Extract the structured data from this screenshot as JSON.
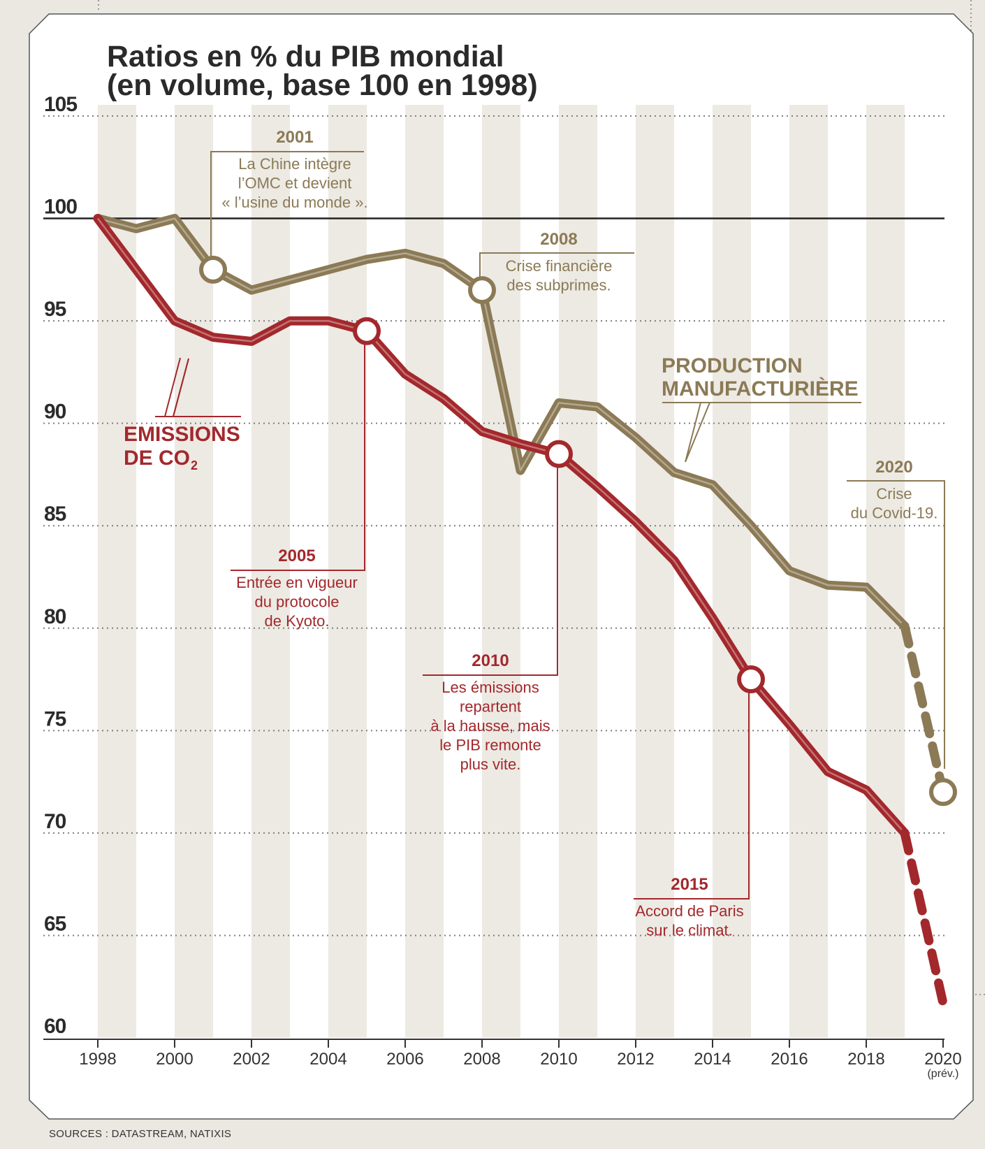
{
  "title": "Ratios en % du PIB mondial",
  "subtitle": "(en volume, base 100 en 1998)",
  "source": "SOURCES : DATASTREAM, NATIXIS",
  "colors": {
    "production": "#8b7a55",
    "emissions": "#a3282c",
    "baseline": "#222222",
    "band": "#edeae4",
    "panel": "#ffffff"
  },
  "x_sub_label": "(prév.)",
  "series_labels": {
    "emissions": [
      "EMISSIONS",
      "DE CO",
      "2"
    ],
    "production": [
      "PRODUCTION",
      "MANUFACTURIÈRE"
    ]
  },
  "annotations": [
    {
      "key": "a2001",
      "year": "2001",
      "lines": [
        "La Chine intègre",
        "l’OMC et devient",
        "« l’usine du monde »."
      ],
      "series": "production"
    },
    {
      "key": "a2008",
      "year": "2008",
      "lines": [
        "Crise financière",
        "des subprimes."
      ],
      "series": "production"
    },
    {
      "key": "a2005",
      "year": "2005",
      "lines": [
        "Entrée en vigueur",
        "du protocole",
        "de Kyoto."
      ],
      "series": "emissions"
    },
    {
      "key": "a2010",
      "year": "2010",
      "lines": [
        "Les émissions",
        "repartent",
        "à la hausse, mais",
        "le PIB remonte",
        "plus vite."
      ],
      "series": "emissions"
    },
    {
      "key": "a2015",
      "year": "2015",
      "lines": [
        "Accord de Paris",
        "sur le climat."
      ],
      "series": "emissions"
    },
    {
      "key": "a2020",
      "year": "2020",
      "lines": [
        "Crise",
        "du Covid-19."
      ],
      "series": "production"
    }
  ],
  "chart_data": {
    "type": "line",
    "title": "Ratios en % du PIB mondial",
    "subtitle": "(en volume, base 100 en 1998)",
    "xlabel": "",
    "ylabel": "",
    "xlim": [
      1998,
      2020
    ],
    "ylim": [
      60,
      105
    ],
    "x_ticks": [
      "1998",
      "2000",
      "2002",
      "2004",
      "2006",
      "2008",
      "2010",
      "2012",
      "2014",
      "2016",
      "2018",
      "2020"
    ],
    "y_ticks": [
      "60",
      "65",
      "70",
      "75",
      "80",
      "85",
      "90",
      "95",
      "100",
      "105"
    ],
    "grid": "horizontal dotted",
    "reference_line": 100,
    "series": [
      {
        "name": "PRODUCTION MANUFACTURIÈRE",
        "x": [
          1998,
          1999,
          2000,
          2001,
          2002,
          2003,
          2004,
          2005,
          2006,
          2007,
          2008,
          2009,
          2010,
          2011,
          2012,
          2013,
          2014,
          2015,
          2016,
          2017,
          2018,
          2019
        ],
        "y": [
          100,
          99.5,
          100,
          97.5,
          96.5,
          97,
          97.5,
          98,
          98.3,
          97.8,
          96.5,
          87.7,
          91,
          90.8,
          89.3,
          87.6,
          87,
          85,
          82.8,
          82.1,
          82,
          80.1
        ],
        "forecast": {
          "x": [
            2019,
            2020
          ],
          "y": [
            80.1,
            72
          ]
        }
      },
      {
        "name": "EMISSIONS DE CO2",
        "x": [
          1998,
          1999,
          2000,
          2001,
          2002,
          2003,
          2004,
          2005,
          2006,
          2007,
          2008,
          2009,
          2010,
          2011,
          2012,
          2013,
          2014,
          2015,
          2016,
          2017,
          2018,
          2019
        ],
        "y": [
          100,
          97.5,
          95,
          94.2,
          94,
          95,
          95,
          94.5,
          92.4,
          91.2,
          89.6,
          89,
          88.5,
          86.9,
          85.2,
          83.3,
          80.5,
          77.5,
          75.3,
          73,
          72.1,
          70
        ],
        "forecast": {
          "x": [
            2019,
            2020
          ],
          "y": [
            70,
            61.7
          ]
        }
      }
    ],
    "markers": [
      {
        "series": "PRODUCTION MANUFACTURIÈRE",
        "x": 2001,
        "y": 97.5
      },
      {
        "series": "PRODUCTION MANUFACTURIÈRE",
        "x": 2008,
        "y": 96.5
      },
      {
        "series": "PRODUCTION MANUFACTURIÈRE",
        "x": 2020,
        "y": 72
      },
      {
        "series": "EMISSIONS DE CO2",
        "x": 2005,
        "y": 94.5
      },
      {
        "series": "EMISSIONS DE CO2",
        "x": 2010,
        "y": 88.5
      },
      {
        "series": "EMISSIONS DE CO2",
        "x": 2015,
        "y": 77.5
      }
    ]
  }
}
